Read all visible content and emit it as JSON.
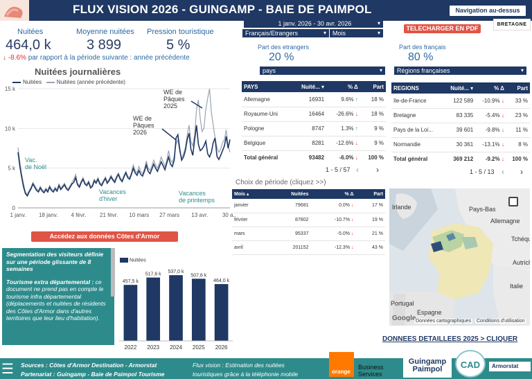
{
  "header": {
    "title": "FLUX VISION 2026  - GUINGAMP - BAIE DE PAIMPOL",
    "nav_button": "Navigation au-dessus"
  },
  "kpis": {
    "nuitees": {
      "label": "Nuitées",
      "value": "464,0 k"
    },
    "moyenne": {
      "label": "Moyenne nuitées",
      "value": "3 899"
    },
    "pression": {
      "label": "Pression touristique",
      "value": "5 %"
    },
    "delta": "-8.6%",
    "delta_text": "par rapport à la période suivante : année précédente"
  },
  "line_chart": {
    "title": "Nuitées journalières",
    "legend_current": "Nuitées",
    "legend_previous": "Nuitées (année précédente)",
    "annotations": {
      "vac_noel": "Vac.\nde Noël",
      "vac_hiver": "Vacances\nd'hiver",
      "vac_printemps": "Vacances\nde printemps",
      "paques_2026": "WE de\nPâques\n2026",
      "paques_2025": "WE de\nPâques\n2025"
    }
  },
  "chart_data": [
    {
      "type": "line",
      "title": "Nuitées journalières",
      "x_tick_labels": [
        "1 janv.",
        "18 janv.",
        "4 févr.",
        "21 févr.",
        "10 mars",
        "27 mars",
        "13 avr.",
        "30 a..."
      ],
      "y_tick_labels": [
        "0",
        "5 k",
        "10 k",
        "15 k"
      ],
      "ylim": [
        0,
        15000
      ],
      "series": [
        {
          "name": "Nuitées",
          "color": "#1f3864",
          "values": [
            7000,
            5200,
            3800,
            2600,
            1800,
            1500,
            2000,
            2400,
            3000,
            2600,
            2200,
            2000,
            2500,
            2100,
            1900,
            2300,
            2000,
            2600,
            2200,
            2000,
            2400,
            2100,
            2800,
            2300,
            2600,
            2900,
            2400,
            2200,
            2600,
            3000,
            3200,
            3800,
            2900,
            2600,
            3200,
            3600,
            3000,
            2800,
            3200,
            2500,
            2700,
            3400,
            3100,
            3600,
            3000,
            2800,
            3300,
            3700,
            3100,
            3400,
            3900,
            3500,
            3200,
            3800,
            4200,
            3600,
            3300,
            3900,
            4400,
            3800,
            3600,
            4200,
            5000,
            4400,
            4100,
            4700,
            4200,
            4000,
            4600,
            5400,
            4600,
            4300,
            4900,
            5500,
            5000,
            4600,
            5200,
            5800,
            5300,
            4800,
            5600,
            6400,
            5500,
            5200,
            6000,
            8800,
            9200,
            7400,
            6000,
            6400,
            7200,
            8600,
            9400,
            7400,
            6600,
            8600,
            10400,
            8000,
            7200,
            7400,
            7800,
            8400,
            6800,
            6400,
            7000,
            8200,
            8800,
            6500,
            6100,
            6600,
            7200,
            7800,
            9000,
            7500,
            8600
          ]
        },
        {
          "name": "Nuitées (année précédente)",
          "color": "#9aa3b0",
          "values": [
            7600,
            5800,
            4200,
            3000,
            2000,
            1700,
            2200,
            2600,
            3200,
            2800,
            2400,
            2200,
            2700,
            2300,
            2100,
            2500,
            2200,
            2800,
            2400,
            2200,
            2600,
            2300,
            3000,
            2500,
            2800,
            3100,
            2600,
            2400,
            2800,
            3200,
            3600,
            4200,
            3100,
            2800,
            3400,
            3800,
            3200,
            3000,
            3400,
            2700,
            2900,
            3600,
            3300,
            3800,
            3200,
            3000,
            3500,
            3900,
            3300,
            3600,
            4100,
            3700,
            3400,
            4000,
            4400,
            3800,
            3500,
            4100,
            4600,
            4000,
            3800,
            4400,
            5400,
            4700,
            4400,
            5200,
            4600,
            4300,
            4900,
            5900,
            5000,
            4700,
            5300,
            6000,
            5400,
            5000,
            5600,
            6400,
            5800,
            5200,
            6000,
            7200,
            6100,
            5700,
            6500,
            8000,
            8600,
            7000,
            6300,
            6800,
            7600,
            9200,
            10400,
            8400,
            7800,
            9200,
            12400,
            13600,
            11200,
            9600,
            10000,
            12400,
            13800,
            15000,
            12000,
            10400,
            8800,
            7600,
            7000,
            7400,
            8200,
            8600,
            9800,
            7800,
            7000
          ]
        }
      ]
    },
    {
      "type": "bar",
      "legend": "Nuitées",
      "categories": [
        "2022",
        "2023",
        "2024",
        "2025",
        "2026"
      ],
      "values": [
        457.5,
        517.6,
        537.0,
        507.6,
        464.0
      ],
      "labels": [
        "457,5 k",
        "517,6 k",
        "537,0 k",
        "507,6 k",
        "464,0 k"
      ],
      "ylim": [
        0,
        600
      ],
      "color": "#1f3864"
    }
  ],
  "period": {
    "date_range": "1 janv. 2026 - 30 avr. 2026",
    "select_fr_etr": "Français/Etrangers",
    "select_granularity": "Mois"
  },
  "pdf_button": "TELECHARGER EN PDF",
  "bretagne_logo": "BRETAGNE",
  "etrangers": {
    "label": "Part des etrangers",
    "value": "20 %",
    "select": "pays"
  },
  "francais": {
    "label": "Part des français",
    "value": "80 %",
    "select": "Régions françaises"
  },
  "pays_table": {
    "headers": [
      "PAYS",
      "Nuité...",
      "% Δ",
      "Part"
    ],
    "rows": [
      {
        "name": "Allemagne",
        "value": "16931",
        "delta": "9.6%",
        "dir": "up",
        "part": "18 %"
      },
      {
        "name": "Royaume-Uni",
        "value": "16464",
        "delta": "-26.6%",
        "dir": "down",
        "part": "18 %"
      },
      {
        "name": "Pologne",
        "value": "8747",
        "delta": "1.3%",
        "dir": "up",
        "part": "9 %"
      },
      {
        "name": "Belgique",
        "value": "8281",
        "delta": "-12.6%",
        "dir": "down",
        "part": "9 %"
      }
    ],
    "total": {
      "name": "Total général",
      "value": "93482",
      "delta": "-6.0%",
      "dir": "down",
      "part": "100 %"
    },
    "pager": "1 - 5 / 57"
  },
  "regions_table": {
    "headers": [
      "REGIONS",
      "Nuité...",
      "% Δ",
      "Part"
    ],
    "rows": [
      {
        "name": "Ile-de-France",
        "value": "122 589",
        "delta": "-10.9%",
        "dir": "down",
        "part": "33 %"
      },
      {
        "name": "Bretagne",
        "value": "83 335",
        "delta": "-5.4%",
        "dir": "down",
        "part": "23 %"
      },
      {
        "name": "Pays de la Loi...",
        "value": "39 601",
        "delta": "-9.8%",
        "dir": "down",
        "part": "11 %"
      },
      {
        "name": "Normandie",
        "value": "30 361",
        "delta": "-13.1%",
        "dir": "down",
        "part": "8 %"
      }
    ],
    "total": {
      "name": "Total général",
      "value": "369 212",
      "delta": "-9.2%",
      "dir": "down",
      "part": "100 %"
    },
    "pager": "1 - 5 / 13"
  },
  "period_table": {
    "title": "Choix de période (cliquez >>)",
    "headers": [
      "Mois",
      "Nuitées",
      "% Δ",
      "Part"
    ],
    "rows": [
      {
        "name": "janvier",
        "value": "79681",
        "delta": "0.0%",
        "dir": "down",
        "part": "17 %"
      },
      {
        "name": "février",
        "value": "87802",
        "delta": "-10.7%",
        "dir": "down",
        "part": "19 %"
      },
      {
        "name": "mars",
        "value": "95337",
        "delta": "-5.0%",
        "dir": "down",
        "part": "21 %"
      },
      {
        "name": "avril",
        "value": "201152",
        "delta": "-12.3%",
        "dir": "down",
        "part": "43 %"
      }
    ]
  },
  "map": {
    "labels": [
      "Irlande",
      "Pays-Bas",
      "Allemagne",
      "Tchéquie",
      "Autriche",
      "Italie",
      "Portugal",
      "Espagne"
    ],
    "attribution_1": "Données cartographiques",
    "attribution_2": "Conditions d'utilisation",
    "google": "Google"
  },
  "cta_button": "Accédez aux données Côtes d'Armor",
  "segmentation": {
    "p1": "Segmentation des visiteurs définie sur une période glissante de 8 semaines",
    "p2_title": "Tourisme extra départemental :",
    "p2": "ce document ne prend pas en compte le tourisme infra départemental (déplacements et nuitées de résidents des Côtes d'Armor dans d'autres territoires que leur lieu d'habitation)."
  },
  "detail_link": "DONNEES DETAILLEES 2025 > CLIQUER",
  "footer": {
    "line1": "Sources : Côtes d'Armor Destination - Armorstat",
    "line2": "Partenariat : Guingamp - Baie de Paimpol Tourisme",
    "line3": "Flux vision : Estimation des nuitées",
    "line4": "touristiques grâce à la téléphonie mobile",
    "orange": "orange",
    "business": "Business\nServices",
    "gp_logo": "Guingamp\nPaimpol",
    "cad_logo": "CAD",
    "armorstat": "Armorstat"
  }
}
